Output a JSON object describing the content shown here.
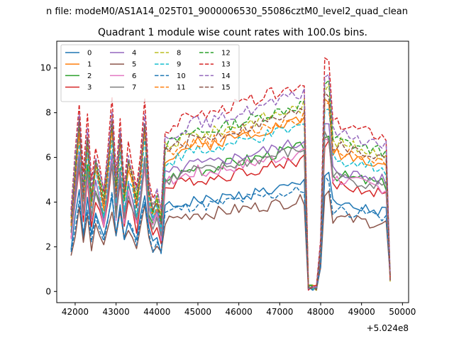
{
  "chart_data": {
    "type": "line",
    "suptitle": "n file: modeM0/AS1A14_025T01_9000006530_55086cztM0_level2_quad_clean",
    "title": "Quadrant 1 module wise count rates with 100.0s bins.",
    "xlabel": "",
    "ylabel": "",
    "x_offset_label": "+5.024e8",
    "xlim": [
      41550,
      50150
    ],
    "ylim": [
      -0.5,
      11.2
    ],
    "xticks": [
      42000,
      43000,
      44000,
      45000,
      46000,
      47000,
      48000,
      49000,
      50000
    ],
    "xtick_labels": [
      "42000",
      "43000",
      "44000",
      "45000",
      "46000",
      "47000",
      "48000",
      "49000",
      "50000"
    ],
    "yticks": [
      0,
      2,
      4,
      6,
      8,
      10
    ],
    "ytick_labels": [
      "0",
      "2",
      "4",
      "6",
      "8",
      "10"
    ],
    "grid": false,
    "legend_location": "upper-left",
    "legend_columns": 4,
    "x_start": 41900,
    "x_step": 100,
    "bin_count": 79,
    "gap_x": [
      47700,
      47800,
      47900
    ],
    "series": [
      {
        "name": "0",
        "color": "#1f77b4",
        "dash": "solid",
        "base": 4.2,
        "seed": 1
      },
      {
        "name": "1",
        "color": "#ff7f0e",
        "dash": "solid",
        "base": 6.8,
        "seed": 2
      },
      {
        "name": "2",
        "color": "#2ca02c",
        "dash": "solid",
        "base": 5.7,
        "seed": 3
      },
      {
        "name": "3",
        "color": "#d62728",
        "dash": "solid",
        "base": 5.2,
        "seed": 4
      },
      {
        "name": "4",
        "color": "#9467bd",
        "dash": "solid",
        "base": 5.9,
        "seed": 5
      },
      {
        "name": "5",
        "color": "#8c564b",
        "dash": "solid",
        "base": 3.6,
        "seed": 6
      },
      {
        "name": "6",
        "color": "#e377c2",
        "dash": "solid",
        "base": 5.5,
        "seed": 7
      },
      {
        "name": "7",
        "color": "#7f7f7f",
        "dash": "solid",
        "base": 5.6,
        "seed": 8
      },
      {
        "name": "8",
        "color": "#bcbd22",
        "dash": "dashed",
        "base": 7.3,
        "seed": 9
      },
      {
        "name": "9",
        "color": "#17becf",
        "dash": "dashed",
        "base": 6.5,
        "seed": 10
      },
      {
        "name": "10",
        "color": "#1f77b4",
        "dash": "dashed",
        "base": 4.0,
        "seed": 11
      },
      {
        "name": "11",
        "color": "#ff7f0e",
        "dash": "dashed",
        "base": 6.9,
        "seed": 12
      },
      {
        "name": "12",
        "color": "#2ca02c",
        "dash": "dashed",
        "base": 7.4,
        "seed": 13
      },
      {
        "name": "13",
        "color": "#d62728",
        "dash": "dashed",
        "base": 8.2,
        "seed": 14
      },
      {
        "name": "14",
        "color": "#9467bd",
        "dash": "dashed",
        "base": 7.8,
        "seed": 15
      },
      {
        "name": "15",
        "color": "#8c564b",
        "dash": "dashed",
        "base": 7.1,
        "seed": 16
      }
    ]
  }
}
